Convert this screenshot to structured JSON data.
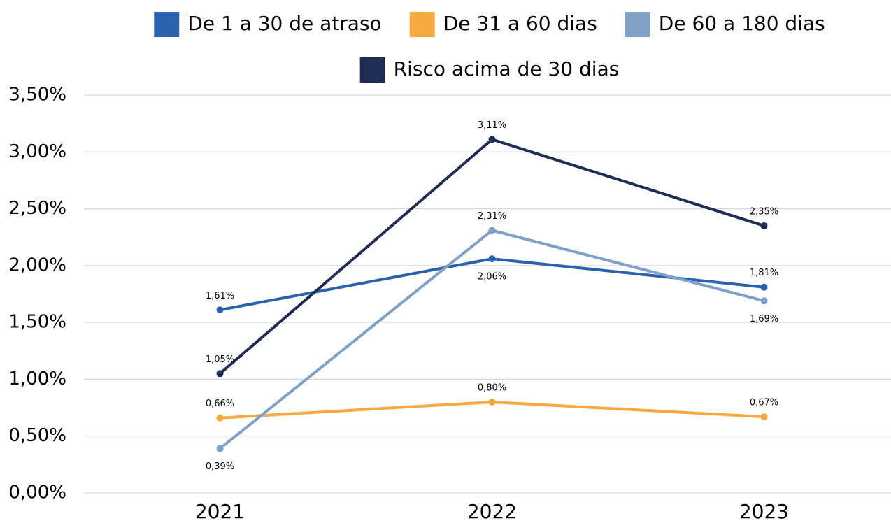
{
  "chart_data": {
    "type": "line",
    "categories": [
      "2021",
      "2022",
      "2023"
    ],
    "series": [
      {
        "name": "De 1 a 30 de atraso",
        "color": "#2a62ad",
        "values": [
          1.61,
          2.06,
          1.81
        ],
        "value_labels": [
          "1,61%",
          "2,06%",
          "1,81%"
        ]
      },
      {
        "name": "De 31 a 60 dias",
        "color": "#f7a941",
        "values": [
          0.66,
          0.8,
          0.67
        ],
        "value_labels": [
          "0,66%",
          "0,80%",
          "0,67%"
        ]
      },
      {
        "name": "De 60 a 180 dias",
        "color": "#7fa1c8",
        "values": [
          0.39,
          2.31,
          1.69
        ],
        "value_labels": [
          "0,39%",
          "2,31%",
          "1,69%"
        ]
      },
      {
        "name": "Risco acima de 30 dias",
        "color": "#1f2d55",
        "values": [
          1.05,
          3.11,
          2.35
        ],
        "value_labels": [
          "1,05%",
          "3,11%",
          "2,35%"
        ]
      }
    ],
    "ylim": [
      0,
      3.5
    ],
    "yticks": [
      {
        "value": 0,
        "label": "0,00%"
      },
      {
        "value": 0.5,
        "label": "0,50%"
      },
      {
        "value": 1,
        "label": "1,00%"
      },
      {
        "value": 1.5,
        "label": "1,50%"
      },
      {
        "value": 2,
        "label": "2,00%"
      },
      {
        "value": 2.5,
        "label": "2,50%"
      },
      {
        "value": 3,
        "label": "3,00%"
      },
      {
        "value": 3.5,
        "label": "3,50%"
      }
    ],
    "grid": true
  }
}
